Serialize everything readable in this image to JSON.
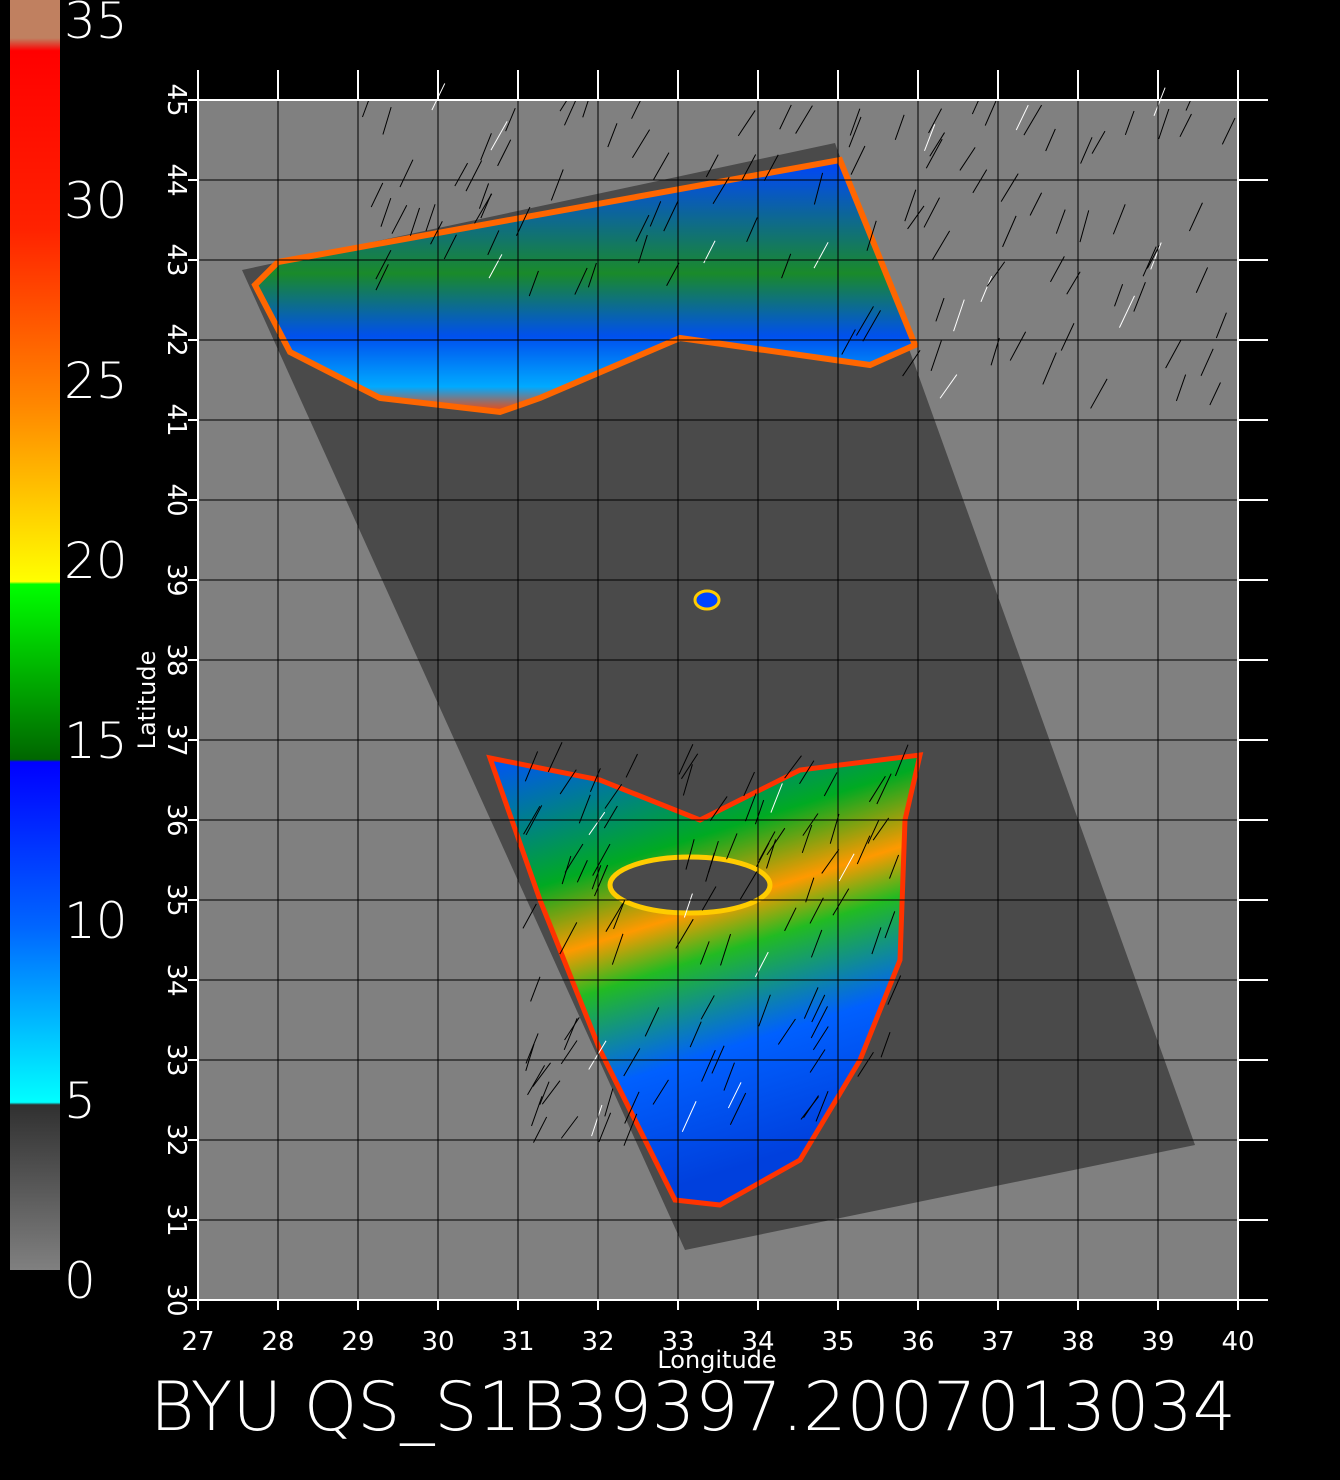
{
  "map": {
    "title": "BYU QS_S1B39397.2007013034",
    "xlabel": "Longitude",
    "ylabel": "Latitude",
    "xlim": [
      27,
      40
    ],
    "ylim": [
      30,
      45
    ],
    "xticks": [
      27,
      28,
      29,
      30,
      31,
      32,
      33,
      34,
      35,
      36,
      37,
      38,
      39,
      40
    ],
    "yticks": [
      30,
      31,
      32,
      33,
      34,
      35,
      36,
      37,
      38,
      39,
      40,
      41,
      42,
      43,
      44,
      45
    ],
    "colorbar": {
      "lim": [
        0,
        35
      ],
      "ticks": [
        0,
        5,
        10,
        15,
        20,
        25,
        30,
        35
      ]
    }
  }
}
